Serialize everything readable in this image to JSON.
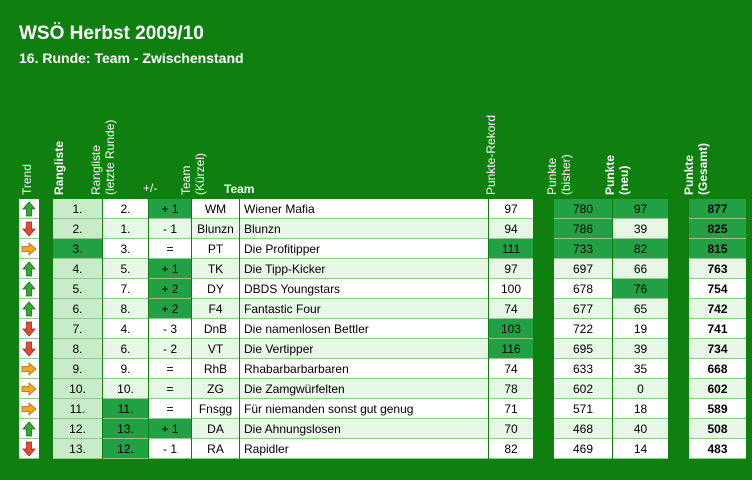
{
  "title": "WSÖ Herbst 2009/10",
  "subtitle": "16. Runde: Team - Zwischenstand",
  "headers": {
    "trend": "Trend",
    "rank": "Rangliste",
    "prev_line1": "Rangliste",
    "prev_line2": "(letzte Runde)",
    "diff": "+/-",
    "abbr_line1": "Team",
    "abbr_line2": "(Kürzel)",
    "team": "Team",
    "record": "Punkte-Rekord",
    "prev_points_line1": "Punkte",
    "prev_points_line2": "(bisher)",
    "new_points_line1": "Punkte",
    "new_points_line2": "(neu)",
    "total_line1": "Punkte",
    "total_line2": "(Gesamt)"
  },
  "colors": {
    "background": "#0f800f",
    "up": "#33a833",
    "down": "#e04a36",
    "same": "#f5a623",
    "highlight": "#22a144"
  },
  "rows": [
    {
      "trend": "up",
      "rank": "1.",
      "prev": "2.",
      "diff": "+ 1",
      "abbr": "WM",
      "team": "Wiener Mafia",
      "record": "97",
      "bisher": "780",
      "neu": "97",
      "gesamt": "877",
      "hl": [
        "diff",
        "bisher",
        "neu",
        "gesamt"
      ]
    },
    {
      "trend": "down",
      "rank": "2.",
      "prev": "1.",
      "diff": "- 1",
      "abbr": "Blunzn",
      "team": "Blunzn",
      "record": "94",
      "bisher": "786",
      "neu": "39",
      "gesamt": "825",
      "hl": [
        "bisher",
        "gesamt"
      ]
    },
    {
      "trend": "same",
      "rank": "3.",
      "prev": "3.",
      "diff": "=",
      "abbr": "PT",
      "team": "Die Profitipper",
      "record": "111",
      "bisher": "733",
      "neu": "82",
      "gesamt": "815",
      "hl": [
        "rank",
        "record",
        "bisher",
        "neu",
        "gesamt"
      ]
    },
    {
      "trend": "up",
      "rank": "4.",
      "prev": "5.",
      "diff": "+ 1",
      "abbr": "TK",
      "team": "Die Tipp-Kicker",
      "record": "97",
      "bisher": "697",
      "neu": "66",
      "gesamt": "763",
      "hl": [
        "diff"
      ]
    },
    {
      "trend": "up",
      "rank": "5.",
      "prev": "7.",
      "diff": "+ 2",
      "abbr": "DY",
      "team": "DBDS Youngstars",
      "record": "100",
      "bisher": "678",
      "neu": "76",
      "gesamt": "754",
      "hl": [
        "diff",
        "neu"
      ]
    },
    {
      "trend": "up",
      "rank": "6.",
      "prev": "8.",
      "diff": "+ 2",
      "abbr": "F4",
      "team": "Fantastic Four",
      "record": "74",
      "bisher": "677",
      "neu": "65",
      "gesamt": "742",
      "hl": [
        "diff"
      ]
    },
    {
      "trend": "down",
      "rank": "7.",
      "prev": "4.",
      "diff": "- 3",
      "abbr": "DnB",
      "team": "Die namenlosen Bettler",
      "record": "103",
      "bisher": "722",
      "neu": "19",
      "gesamt": "741",
      "hl": [
        "record"
      ]
    },
    {
      "trend": "down",
      "rank": "8.",
      "prev": "6.",
      "diff": "- 2",
      "abbr": "VT",
      "team": "Die Vertipper",
      "record": "116",
      "bisher": "695",
      "neu": "39",
      "gesamt": "734",
      "hl": [
        "record"
      ]
    },
    {
      "trend": "same",
      "rank": "9.",
      "prev": "9.",
      "diff": "=",
      "abbr": "RhB",
      "team": "Rhabarbarbarbaren",
      "record": "74",
      "bisher": "633",
      "neu": "35",
      "gesamt": "668",
      "hl": []
    },
    {
      "trend": "same",
      "rank": "10.",
      "prev": "10.",
      "diff": "=",
      "abbr": "ZG",
      "team": "Die Zamgwürfelten",
      "record": "78",
      "bisher": "602",
      "neu": "0",
      "gesamt": "602",
      "hl": []
    },
    {
      "trend": "same",
      "rank": "11.",
      "prev": "11.",
      "diff": "=",
      "abbr": "Fnsgg",
      "team": "Für niemanden sonst gut genug",
      "record": "71",
      "bisher": "571",
      "neu": "18",
      "gesamt": "589",
      "hl": [
        "prev"
      ]
    },
    {
      "trend": "up",
      "rank": "12.",
      "prev": "13.",
      "diff": "+ 1",
      "abbr": "DA",
      "team": "Die Ahnungslosen",
      "record": "70",
      "bisher": "468",
      "neu": "40",
      "gesamt": "508",
      "hl": [
        "prev",
        "diff"
      ]
    },
    {
      "trend": "down",
      "rank": "13.",
      "prev": "12.",
      "diff": "- 1",
      "abbr": "RA",
      "team": "Rapidler",
      "record": "82",
      "bisher": "469",
      "neu": "14",
      "gesamt": "483",
      "hl": [
        "prev"
      ]
    }
  ]
}
